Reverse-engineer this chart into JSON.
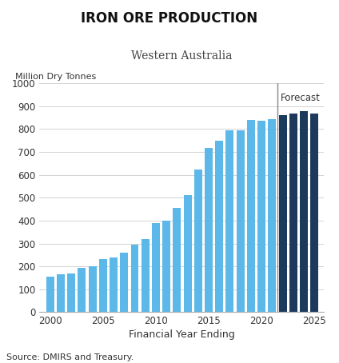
{
  "title": "IRON ORE PRODUCTION",
  "subtitle": "Western Australia",
  "ylabel": "Million Dry Tonnes",
  "xlabel": "Financial Year Ending",
  "source": "Source: DMIRS and Treasury.",
  "ylim": [
    0,
    1000
  ],
  "yticks": [
    0,
    100,
    200,
    300,
    400,
    500,
    600,
    700,
    800,
    900,
    1000
  ],
  "xticks": [
    2000,
    2005,
    2010,
    2015,
    2020,
    2025
  ],
  "years": [
    2000,
    2001,
    2002,
    2003,
    2004,
    2005,
    2006,
    2007,
    2008,
    2009,
    2010,
    2011,
    2012,
    2013,
    2014,
    2015,
    2016,
    2017,
    2018,
    2019,
    2020,
    2021,
    2022,
    2023,
    2024,
    2025
  ],
  "values": [
    155,
    165,
    168,
    192,
    200,
    232,
    240,
    260,
    295,
    318,
    390,
    400,
    455,
    510,
    625,
    718,
    748,
    795,
    795,
    840,
    838,
    845,
    860,
    867,
    878,
    868
  ],
  "forecast_start_year": 2022,
  "actual_color": "#5BB8E8",
  "forecast_color": "#1B3A5C",
  "forecast_line_color": "#888888",
  "forecast_label": "Forecast",
  "background_color": "#ffffff",
  "grid_color": "#cccccc",
  "title_fontsize": 12,
  "subtitle_fontsize": 10,
  "ylabel_fontsize": 8,
  "xlabel_fontsize": 9,
  "tick_fontsize": 8.5,
  "source_fontsize": 8
}
